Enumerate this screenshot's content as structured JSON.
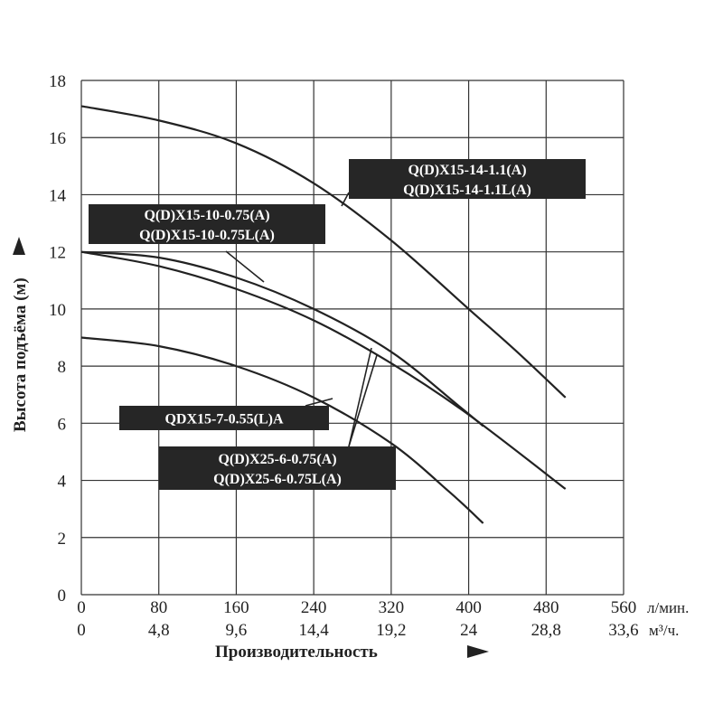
{
  "chart_data": {
    "type": "line",
    "xlabel": "Производительность",
    "ylabel": "Высота подъёма (м)",
    "x_unit": "л/мин.",
    "x2_unit": "м³/ч.",
    "xlim": [
      0,
      560
    ],
    "ylim": [
      0,
      18
    ],
    "x_ticks": [
      "0",
      "80",
      "160",
      "240",
      "320",
      "400",
      "480",
      "560"
    ],
    "x2_ticks": [
      "0",
      "4,8",
      "9,6",
      "14,4",
      "19,2",
      "24",
      "28,8",
      "33,6"
    ],
    "y_ticks": [
      "0",
      "2",
      "4",
      "6",
      "8",
      "10",
      "12",
      "14",
      "16",
      "18"
    ],
    "grid": true,
    "series": [
      {
        "name": "Q(D)X15-14-1.1(A) / Q(D)X15-14-1.1L(A)",
        "x": [
          0,
          80,
          160,
          240,
          320,
          400,
          450,
          500
        ],
        "y": [
          17.1,
          16.6,
          15.8,
          14.4,
          12.4,
          10.0,
          8.5,
          6.9
        ]
      },
      {
        "name": "Q(D)X15-10-0.75(A) / Q(D)X15-10-0.75L(A)",
        "x": [
          0,
          80,
          160,
          240,
          320,
          390,
          415
        ],
        "y": [
          12.0,
          11.8,
          11.1,
          10.0,
          8.5,
          6.6,
          5.9
        ]
      },
      {
        "name": "Q(D)X25-6-0.75(A) / Q(D)X25-6-0.75L(A)",
        "x": [
          0,
          80,
          160,
          240,
          320,
          400,
          500
        ],
        "y": [
          12.0,
          11.5,
          10.7,
          9.6,
          8.1,
          6.3,
          3.7
        ]
      },
      {
        "name": "QDX15-7-0.55(L)A",
        "x": [
          0,
          80,
          160,
          240,
          320,
          380,
          415
        ],
        "y": [
          9.0,
          8.7,
          8.0,
          6.9,
          5.3,
          3.6,
          2.5
        ]
      }
    ],
    "annotations": [
      {
        "lines": [
          "Q(D)X15-14-1.1(A)",
          "Q(D)X15-14-1.1L(A)"
        ]
      },
      {
        "lines": [
          "Q(D)X15-10-0.75(A)",
          "Q(D)X15-10-0.75L(A)"
        ]
      },
      {
        "lines": [
          "QDX15-7-0.55(L)A"
        ]
      },
      {
        "lines": [
          "Q(D)X25-6-0.75(A)",
          "Q(D)X25-6-0.75L(A)"
        ]
      }
    ]
  }
}
